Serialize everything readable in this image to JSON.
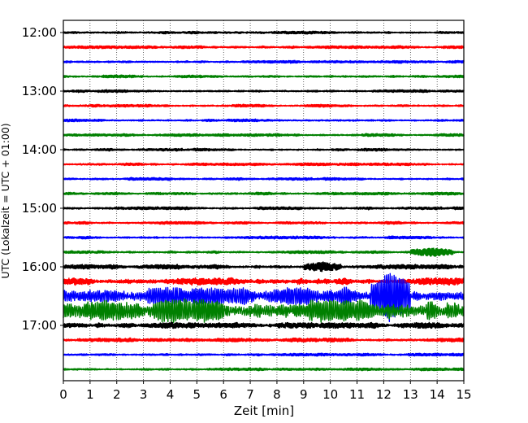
{
  "chart_data": {
    "type": "line",
    "title": "",
    "xlabel": "Zeit  [min]",
    "ylabel": "UTC (Lokalzeit = UTC + 01:00)",
    "xlim": [
      0,
      15
    ],
    "x_ticks": [
      "0",
      "1",
      "2",
      "3",
      "4",
      "5",
      "6",
      "7",
      "8",
      "9",
      "10",
      "11",
      "12",
      "13",
      "14",
      "15"
    ],
    "y_ticks": [
      "12:00",
      "13:00",
      "14:00",
      "15:00",
      "16:00",
      "17:00"
    ],
    "grid": "vertical dotted lines at each minute",
    "legend": "none",
    "trace_colors_cycle": [
      "#000000",
      "#ff0000",
      "#0000ff",
      "#008000"
    ],
    "series": [
      {
        "start": "12:00",
        "color": "#000000",
        "amplitude": 1.0,
        "events": []
      },
      {
        "start": "12:15",
        "color": "#ff0000",
        "amplitude": 1.0,
        "events": []
      },
      {
        "start": "12:30",
        "color": "#0000ff",
        "amplitude": 1.0,
        "events": []
      },
      {
        "start": "12:45",
        "color": "#008000",
        "amplitude": 1.0,
        "events": []
      },
      {
        "start": "13:00",
        "color": "#000000",
        "amplitude": 1.0,
        "events": []
      },
      {
        "start": "13:15",
        "color": "#ff0000",
        "amplitude": 1.0,
        "events": []
      },
      {
        "start": "13:30",
        "color": "#0000ff",
        "amplitude": 1.0,
        "events": []
      },
      {
        "start": "13:45",
        "color": "#008000",
        "amplitude": 1.0,
        "events": []
      },
      {
        "start": "14:00",
        "color": "#000000",
        "amplitude": 1.0,
        "events": []
      },
      {
        "start": "14:15",
        "color": "#ff0000",
        "amplitude": 1.0,
        "events": []
      },
      {
        "start": "14:30",
        "color": "#0000ff",
        "amplitude": 1.0,
        "events": []
      },
      {
        "start": "14:45",
        "color": "#008000",
        "amplitude": 1.0,
        "events": []
      },
      {
        "start": "15:00",
        "color": "#000000",
        "amplitude": 1.0,
        "events": []
      },
      {
        "start": "15:15",
        "color": "#ff0000",
        "amplitude": 1.0,
        "events": []
      },
      {
        "start": "15:30",
        "color": "#0000ff",
        "amplitude": 1.0,
        "events": []
      },
      {
        "start": "15:45",
        "color": "#008000",
        "amplitude": 1.0,
        "events": [
          {
            "from": 13.0,
            "to": 14.6,
            "amp": 4
          }
        ]
      },
      {
        "start": "16:00",
        "color": "#000000",
        "amplitude": 1.6,
        "events": [
          {
            "from": 9.0,
            "to": 10.4,
            "amp": 5
          }
        ]
      },
      {
        "start": "16:15",
        "color": "#ff0000",
        "amplitude": 2.5,
        "events": []
      },
      {
        "start": "16:30",
        "color": "#0000ff",
        "amplitude": 6.0,
        "events": [
          {
            "from": 11.5,
            "to": 13.0,
            "amp": 25
          }
        ]
      },
      {
        "start": "16:45",
        "color": "#008000",
        "amplitude": 8.0,
        "events": []
      },
      {
        "start": "17:00",
        "color": "#000000",
        "amplitude": 2.0,
        "events": []
      },
      {
        "start": "17:15",
        "color": "#ff0000",
        "amplitude": 1.4,
        "events": []
      },
      {
        "start": "17:30",
        "color": "#0000ff",
        "amplitude": 1.0,
        "events": []
      },
      {
        "start": "17:45",
        "color": "#008000",
        "amplitude": 1.0,
        "events": []
      }
    ]
  }
}
